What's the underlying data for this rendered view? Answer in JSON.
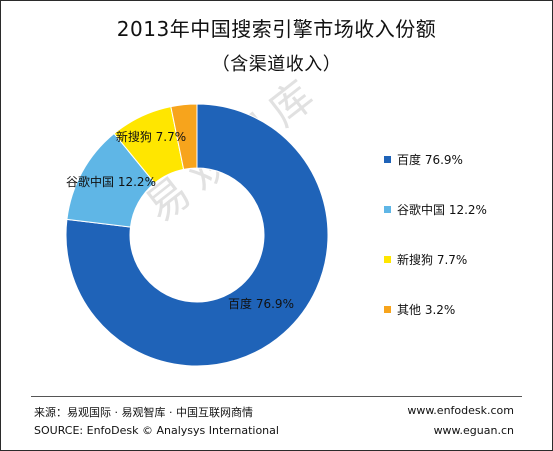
{
  "chart_data": {
    "type": "pie",
    "title": "2013年中国搜索引擎市场收入份额",
    "subtitle": "（含渠道收入）",
    "donut": true,
    "slices": [
      {
        "label": "百度",
        "value": 76.9,
        "label_text": "76.9%",
        "color": "#1f63b8"
      },
      {
        "label": "谷歌中国",
        "value": 12.2,
        "label_text": "12.2%",
        "color": "#5fb6e6"
      },
      {
        "label": "新搜狗",
        "value": 7.7,
        "label_text": "7.7%",
        "color": "#ffe600"
      },
      {
        "label": "其他",
        "value": 3.2,
        "label_text": "3.2%",
        "color": "#f7a41c"
      }
    ],
    "legend_position": "right"
  },
  "watermark": "易观智库",
  "footer": {
    "source_cn": "来源：易观国际 · 易观智库 · 中国互联网商情",
    "source_en": "SOURCE: EnfoDesk © Analysys International",
    "url1": "www.enfodesk.com",
    "url2": "www.eguan.cn"
  }
}
